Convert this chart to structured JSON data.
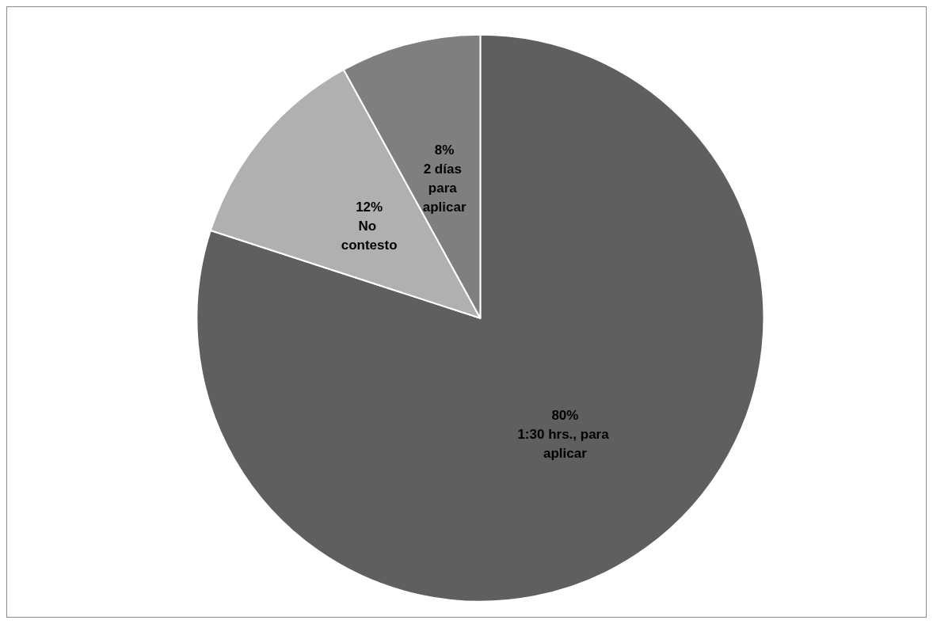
{
  "chart_data": {
    "type": "pie",
    "categories": [
      "1:30 hrs., para aplicar",
      "No contesto",
      "2 días para aplicar"
    ],
    "values": [
      80,
      12,
      8
    ],
    "colors": [
      "#5f5f5f",
      "#b0b0b0",
      "#7f7f7f"
    ],
    "value_labels": [
      "80%",
      "12%",
      "8%"
    ]
  }
}
